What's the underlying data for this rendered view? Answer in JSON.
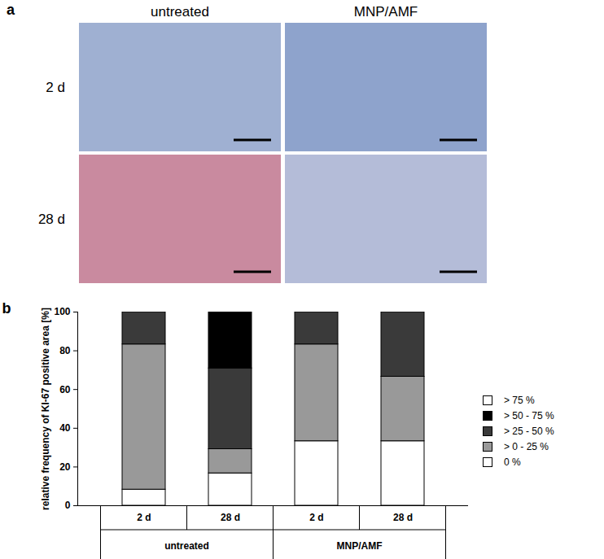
{
  "panel_a": {
    "label": "a",
    "columns": [
      "untreated",
      "MNP/AMF"
    ],
    "rows": [
      "2 d",
      "28 d"
    ]
  },
  "panel_b": {
    "label": "b"
  },
  "chart_data": {
    "type": "bar",
    "stacked": true,
    "categories": [
      "2 d",
      "28 d",
      "2 d",
      "28 d"
    ],
    "category_groups": [
      "untreated",
      "untreated",
      "MNP/AMF",
      "MNP/AMF"
    ],
    "y_label": "relative frequency of KI-67 positive area [%]",
    "ylim": [
      0,
      100
    ],
    "yticks": [
      0,
      20,
      40,
      60,
      80,
      100
    ],
    "grid": false,
    "legend": "right",
    "series": [
      {
        "name": "0 %",
        "color": "#ffffff",
        "values": [
          8.3,
          16.7,
          33.3,
          33.3
        ]
      },
      {
        "name": "> 0 - 25 %",
        "color": "#999999",
        "values": [
          75.0,
          12.5,
          50.0,
          33.3
        ]
      },
      {
        "name": "> 25 - 50 %",
        "color": "#3a3a3a",
        "values": [
          16.7,
          41.7,
          16.7,
          33.4
        ]
      },
      {
        "name": "> 50 - 75 %",
        "color": "#000000",
        "values": [
          0,
          29.1,
          0,
          0
        ]
      },
      {
        "name": "> 75 %",
        "color": "#ffffff",
        "values": [
          0,
          0,
          0,
          0
        ]
      }
    ]
  }
}
